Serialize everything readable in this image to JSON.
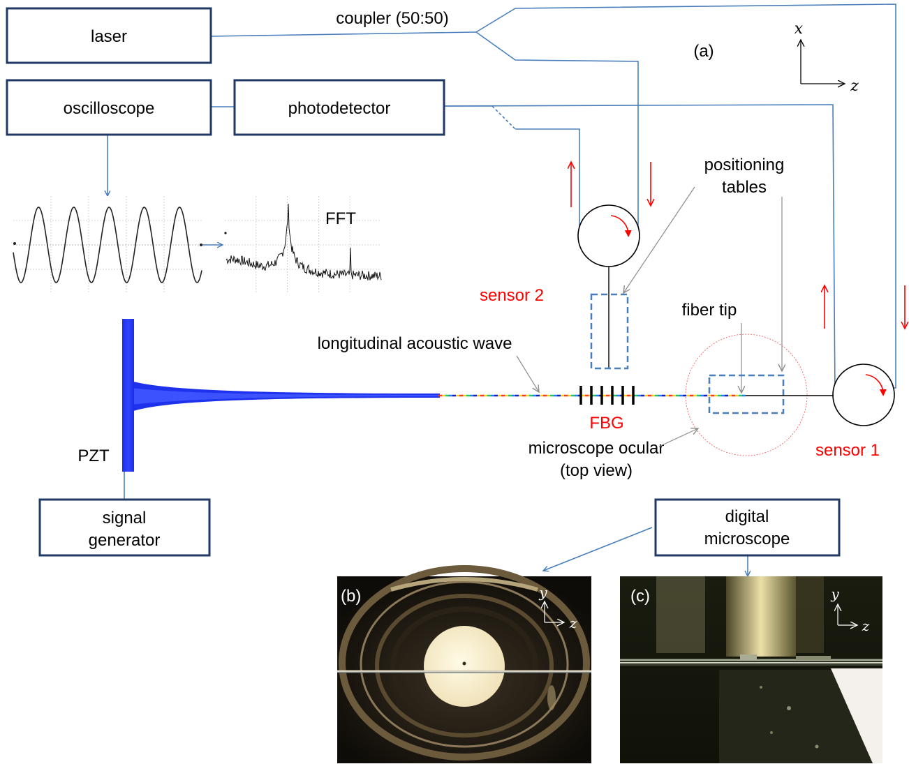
{
  "boxes": {
    "laser": "laser",
    "oscilloscope": "oscilloscope",
    "photodetector": "photodetector",
    "signal_generator": [
      "signal",
      "generator"
    ],
    "digital_microscope": [
      "digital",
      "microscope"
    ]
  },
  "labels": {
    "coupler": "coupler (50:50)",
    "panel_a": "(a)",
    "fft": "FFT",
    "sensor_2": "sensor 2",
    "sensor_1": "sensor 1",
    "positioning_tables": [
      "positioning",
      "tables"
    ],
    "fiber_tip": "fiber tip",
    "longitudinal_wave": "longitudinal acoustic wave",
    "fbg": "FBG",
    "microscope_ocular": [
      "microscope ocular",
      "(top view)"
    ],
    "pzt": "PZT",
    "panel_b": "(b)",
    "panel_c": "(c)"
  },
  "axes": {
    "main": {
      "vertical": "x",
      "horizontal": "z"
    },
    "photo_b": {
      "vertical": "y",
      "horizontal": "z"
    },
    "photo_c": {
      "vertical": "y",
      "horizontal": "z"
    }
  },
  "colors": {
    "box_border": "#1f3864",
    "fiber": "#4a7ebb",
    "highlight": "#ff0000",
    "pzt": "#1a2ee6"
  }
}
